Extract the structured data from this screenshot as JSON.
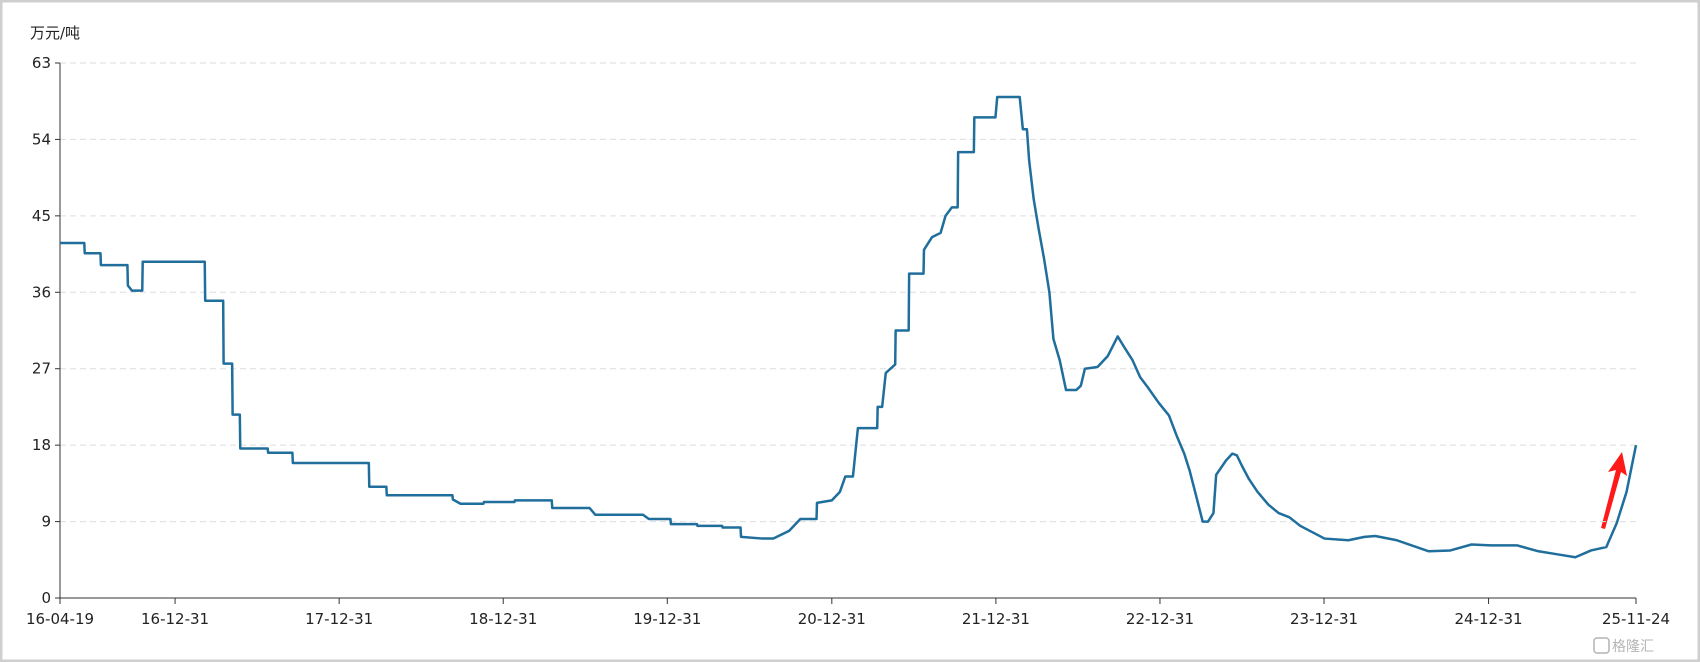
{
  "chart_data": {
    "type": "line",
    "y_label": "万元/吨",
    "watermark": "格隆汇",
    "ylim": [
      0,
      63
    ],
    "yticks": [
      0,
      9,
      18,
      27,
      36,
      45,
      54,
      63
    ],
    "xlim": [
      "16-04-19",
      "25-11-24"
    ],
    "xticks": [
      "16-04-19",
      "16-12-31",
      "17-12-31",
      "18-12-31",
      "19-12-31",
      "20-12-31",
      "21-12-31",
      "22-12-31",
      "23-12-31",
      "24-12-31",
      "25-11-24"
    ],
    "grid": true,
    "x": [
      "16-04-19",
      "16-06-12",
      "16-06-13",
      "16-07-18",
      "16-07-19",
      "16-09-16",
      "16-09-17",
      "16-09-26",
      "16-10-19",
      "16-10-20",
      "17-03-07",
      "17-03-08",
      "17-04-17",
      "17-04-18",
      "17-05-07",
      "17-05-08",
      "17-05-24",
      "17-05-25",
      "17-07-25",
      "17-07-26",
      "17-09-18",
      "17-09-19",
      "18-03-07",
      "18-03-08",
      "18-04-15",
      "18-04-16",
      "18-09-09",
      "18-09-10",
      "18-09-27",
      "18-11-17",
      "18-11-18",
      "19-01-25",
      "19-01-26",
      "19-04-18",
      "19-04-19",
      "19-07-11",
      "19-07-24",
      "19-11-07",
      "19-11-20",
      "20-01-07",
      "20-01-08",
      "20-03-06",
      "20-03-07",
      "20-05-01",
      "20-05-02",
      "20-06-11",
      "20-06-12",
      "20-07-30",
      "20-08-23",
      "20-09-27",
      "20-10-22",
      "20-11-27",
      "20-11-28",
      "20-12-31",
      "21-01-18",
      "21-01-30",
      "21-02-16",
      "21-02-27",
      "21-04-11",
      "21-04-12",
      "21-04-22",
      "21-04-30",
      "21-05-21",
      "21-05-22",
      "21-06-20",
      "21-06-21",
      "21-07-23",
      "21-07-24",
      "21-08-11",
      "21-08-30",
      "21-09-10",
      "21-09-24",
      "21-10-07",
      "21-10-08",
      "21-11-12",
      "21-11-13",
      "21-12-30",
      "22-01-03",
      "22-02-22",
      "22-03-01",
      "22-03-10",
      "22-03-15",
      "22-03-25",
      "22-04-05",
      "22-04-17",
      "22-04-29",
      "22-05-08",
      "22-05-22",
      "22-06-05",
      "22-06-28",
      "22-07-08",
      "22-07-17",
      "22-08-14",
      "22-09-06",
      "22-09-28",
      "22-10-13",
      "22-10-31",
      "22-11-17",
      "22-12-04",
      "22-12-28",
      "23-01-20",
      "23-02-07",
      "23-02-23",
      "23-03-07",
      "23-03-24",
      "23-04-05",
      "23-04-17",
      "23-04-29",
      "23-05-05",
      "23-05-27",
      "23-06-10",
      "23-06-20",
      "23-07-02",
      "23-07-17",
      "23-08-05",
      "23-08-29",
      "23-09-21",
      "23-10-15",
      "23-11-08",
      "24-01-01",
      "24-02-23",
      "24-03-30",
      "24-04-23",
      "24-06-10",
      "24-08-20",
      "24-10-07",
      "24-11-23",
      "25-01-05",
      "25-03-04",
      "25-04-21",
      "25-06-07",
      "25-07-12",
      "25-08-16",
      "25-09-19",
      "25-10-12",
      "25-11-03",
      "25-11-24"
    ],
    "series": [
      {
        "color": "#1f6e9c",
        "values": [
          41.8,
          41.8,
          40.6,
          40.6,
          39.2,
          39.2,
          36.8,
          36.2,
          36.2,
          39.6,
          39.6,
          35.0,
          35.0,
          27.6,
          27.6,
          21.6,
          21.6,
          17.6,
          17.6,
          17.1,
          17.1,
          15.9,
          15.9,
          13.1,
          13.1,
          12.1,
          12.1,
          11.6,
          11.1,
          11.1,
          11.3,
          11.3,
          11.5,
          11.5,
          10.6,
          10.6,
          9.8,
          9.8,
          9.3,
          9.3,
          8.7,
          8.7,
          8.5,
          8.5,
          8.3,
          8.3,
          7.2,
          7.0,
          7.0,
          7.9,
          9.3,
          9.3,
          11.2,
          11.5,
          12.5,
          14.3,
          14.3,
          20.0,
          20.0,
          22.5,
          22.5,
          26.5,
          27.5,
          31.5,
          31.5,
          38.2,
          38.2,
          41.0,
          42.5,
          43.0,
          45.0,
          46.0,
          46.0,
          52.5,
          52.5,
          56.6,
          56.6,
          59.0,
          59.0,
          55.2,
          55.2,
          51.5,
          47.0,
          43.5,
          40.0,
          36.0,
          30.5,
          28.0,
          24.5,
          24.5,
          25.0,
          27.0,
          27.2,
          28.5,
          30.8,
          29.5,
          28.0,
          26.0,
          24.8,
          23.0,
          21.5,
          19.0,
          17.0,
          15.0,
          11.5,
          9.0,
          9.0,
          10.0,
          14.5,
          16.2,
          17.0,
          16.8,
          15.5,
          14.0,
          12.5,
          11.0,
          10.0,
          9.5,
          8.5,
          7.0,
          6.8,
          7.2,
          7.3,
          6.8,
          5.5,
          5.6,
          6.3,
          6.2,
          6.2,
          5.5,
          5.1,
          4.8,
          5.6,
          6.0,
          8.8,
          12.5,
          18.0
        ]
      }
    ]
  }
}
